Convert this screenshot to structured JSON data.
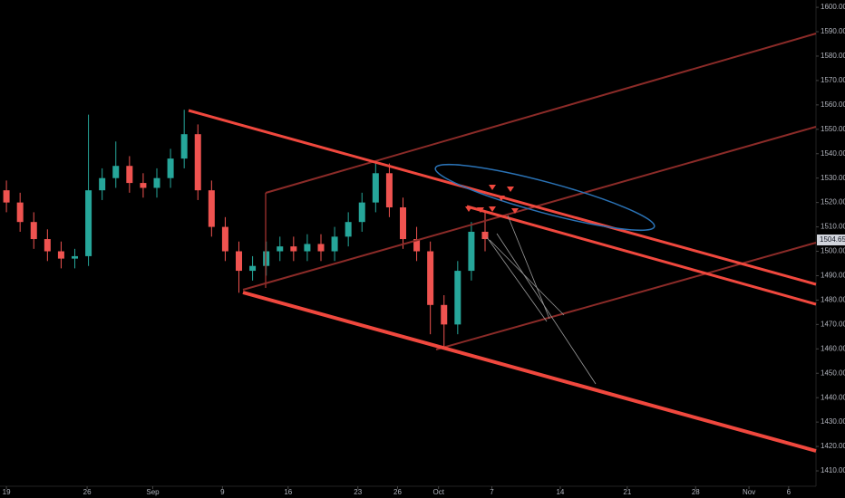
{
  "chart_data": {
    "type": "candlestick",
    "x": [
      0,
      1,
      2,
      3,
      4,
      5,
      6,
      7,
      8,
      9,
      10,
      11,
      12,
      13,
      14,
      15,
      16,
      17,
      18,
      19,
      20,
      21,
      22,
      23,
      24,
      25,
      26,
      27,
      28,
      29,
      30,
      31,
      32,
      33,
      34,
      35
    ],
    "open": [
      1525,
      1520,
      1512,
      1505,
      1500,
      1497,
      1498,
      1525,
      1530,
      1535,
      1528,
      1526,
      1530,
      1538,
      1548,
      1525,
      1510,
      1500,
      1492,
      1494,
      1500,
      1502,
      1500,
      1503,
      1500,
      1506,
      1512,
      1520,
      1532,
      1518,
      1505,
      1500,
      1478,
      1470,
      1492,
      1508
    ],
    "high": [
      1529,
      1524,
      1516,
      1509,
      1504,
      1501,
      1556,
      1534,
      1545,
      1539,
      1532,
      1534,
      1542,
      1558,
      1552,
      1529,
      1514,
      1504,
      1498,
      1504,
      1506,
      1506,
      1507,
      1507,
      1510,
      1516,
      1524,
      1537,
      1536,
      1522,
      1510,
      1504,
      1482,
      1496,
      1512,
      1516
    ],
    "low": [
      1516,
      1508,
      1501,
      1496,
      1493,
      1493,
      1494,
      1521,
      1526,
      1524,
      1522,
      1522,
      1526,
      1534,
      1521,
      1506,
      1496,
      1483,
      1488,
      1490,
      1496,
      1496,
      1496,
      1496,
      1496,
      1502,
      1508,
      1516,
      1514,
      1501,
      1496,
      1466,
      1461,
      1466,
      1488,
      1500
    ],
    "close": [
      1520,
      1512,
      1505,
      1500,
      1497,
      1498,
      1525,
      1530,
      1535,
      1528,
      1526,
      1530,
      1538,
      1548,
      1525,
      1510,
      1500,
      1492,
      1494,
      1500,
      1502,
      1500,
      1503,
      1500,
      1506,
      1512,
      1520,
      1532,
      1518,
      1505,
      1500,
      1478,
      1470,
      1492,
      1508,
      1505
    ],
    "up_color": "#26a69a",
    "down_color": "#ef5350",
    "xlim": [
      -0.47,
      59.2
    ],
    "xticks": [
      {
        "value": 0,
        "label": "19"
      },
      {
        "value": 5.9,
        "label": "26"
      },
      {
        "value": 10.7,
        "label": "Sep"
      },
      {
        "value": 15.8,
        "label": "9"
      },
      {
        "value": 20.6,
        "label": "16"
      },
      {
        "value": 25.7,
        "label": "23"
      },
      {
        "value": 28.6,
        "label": "26"
      },
      {
        "value": 31.6,
        "label": "Oct"
      },
      {
        "value": 35.5,
        "label": "7"
      },
      {
        "value": 40.5,
        "label": "14"
      },
      {
        "value": 45.4,
        "label": "21"
      },
      {
        "value": 50.4,
        "label": "28"
      },
      {
        "value": 54.3,
        "label": "Nov"
      },
      {
        "value": 57.2,
        "label": "6"
      }
    ],
    "ylim": [
      1403.7,
      1603
    ],
    "yticks": [
      {
        "value": 1410,
        "label": "1410.00"
      },
      {
        "value": 1420,
        "label": "1420.00"
      },
      {
        "value": 1430,
        "label": "1430.00"
      },
      {
        "value": 1440,
        "label": "1440.00"
      },
      {
        "value": 1450,
        "label": "1450.00"
      },
      {
        "value": 1460,
        "label": "1460.00"
      },
      {
        "value": 1470,
        "label": "1470.00"
      },
      {
        "value": 1480,
        "label": "1480.00"
      },
      {
        "value": 1490,
        "label": "1490.00"
      },
      {
        "value": 1500,
        "label": "1500.00"
      },
      {
        "value": 1510,
        "label": "1510.00"
      },
      {
        "value": 1520,
        "label": "1520.00"
      },
      {
        "value": 1530,
        "label": "1530.00"
      },
      {
        "value": 1540,
        "label": "1540.00"
      },
      {
        "value": 1550,
        "label": "1550.00"
      },
      {
        "value": 1560,
        "label": "1560.00"
      },
      {
        "value": 1570,
        "label": "1570.00"
      },
      {
        "value": 1580,
        "label": "1580.00"
      },
      {
        "value": 1590,
        "label": "1590.00"
      },
      {
        "value": 1600,
        "label": "1600.00"
      }
    ],
    "last_price": {
      "value": 1504.65,
      "label": "1504.65"
    }
  }
}
